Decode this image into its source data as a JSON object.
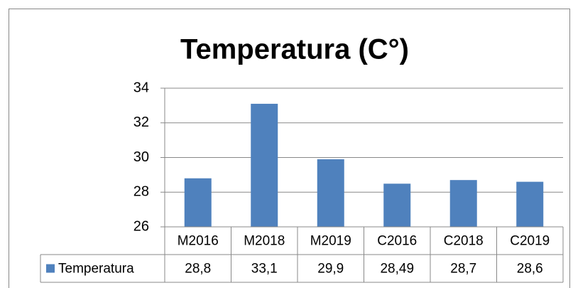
{
  "chart_data": {
    "type": "bar",
    "title": "Temperatura (C°)",
    "categories": [
      "M2016",
      "M2018",
      "M2019",
      "C2016",
      "C2018",
      "C2019"
    ],
    "series": [
      {
        "name": "Temperatura",
        "color": "#4f81bd",
        "values": [
          28.8,
          33.1,
          29.9,
          28.49,
          28.7,
          28.6
        ],
        "value_labels": [
          "28,8",
          "33,1",
          "29,9",
          "28,49",
          "28,7",
          "28,6"
        ]
      }
    ],
    "ylim": [
      26,
      34
    ],
    "yticks": [
      26,
      28,
      30,
      32,
      34
    ],
    "grid": true
  }
}
